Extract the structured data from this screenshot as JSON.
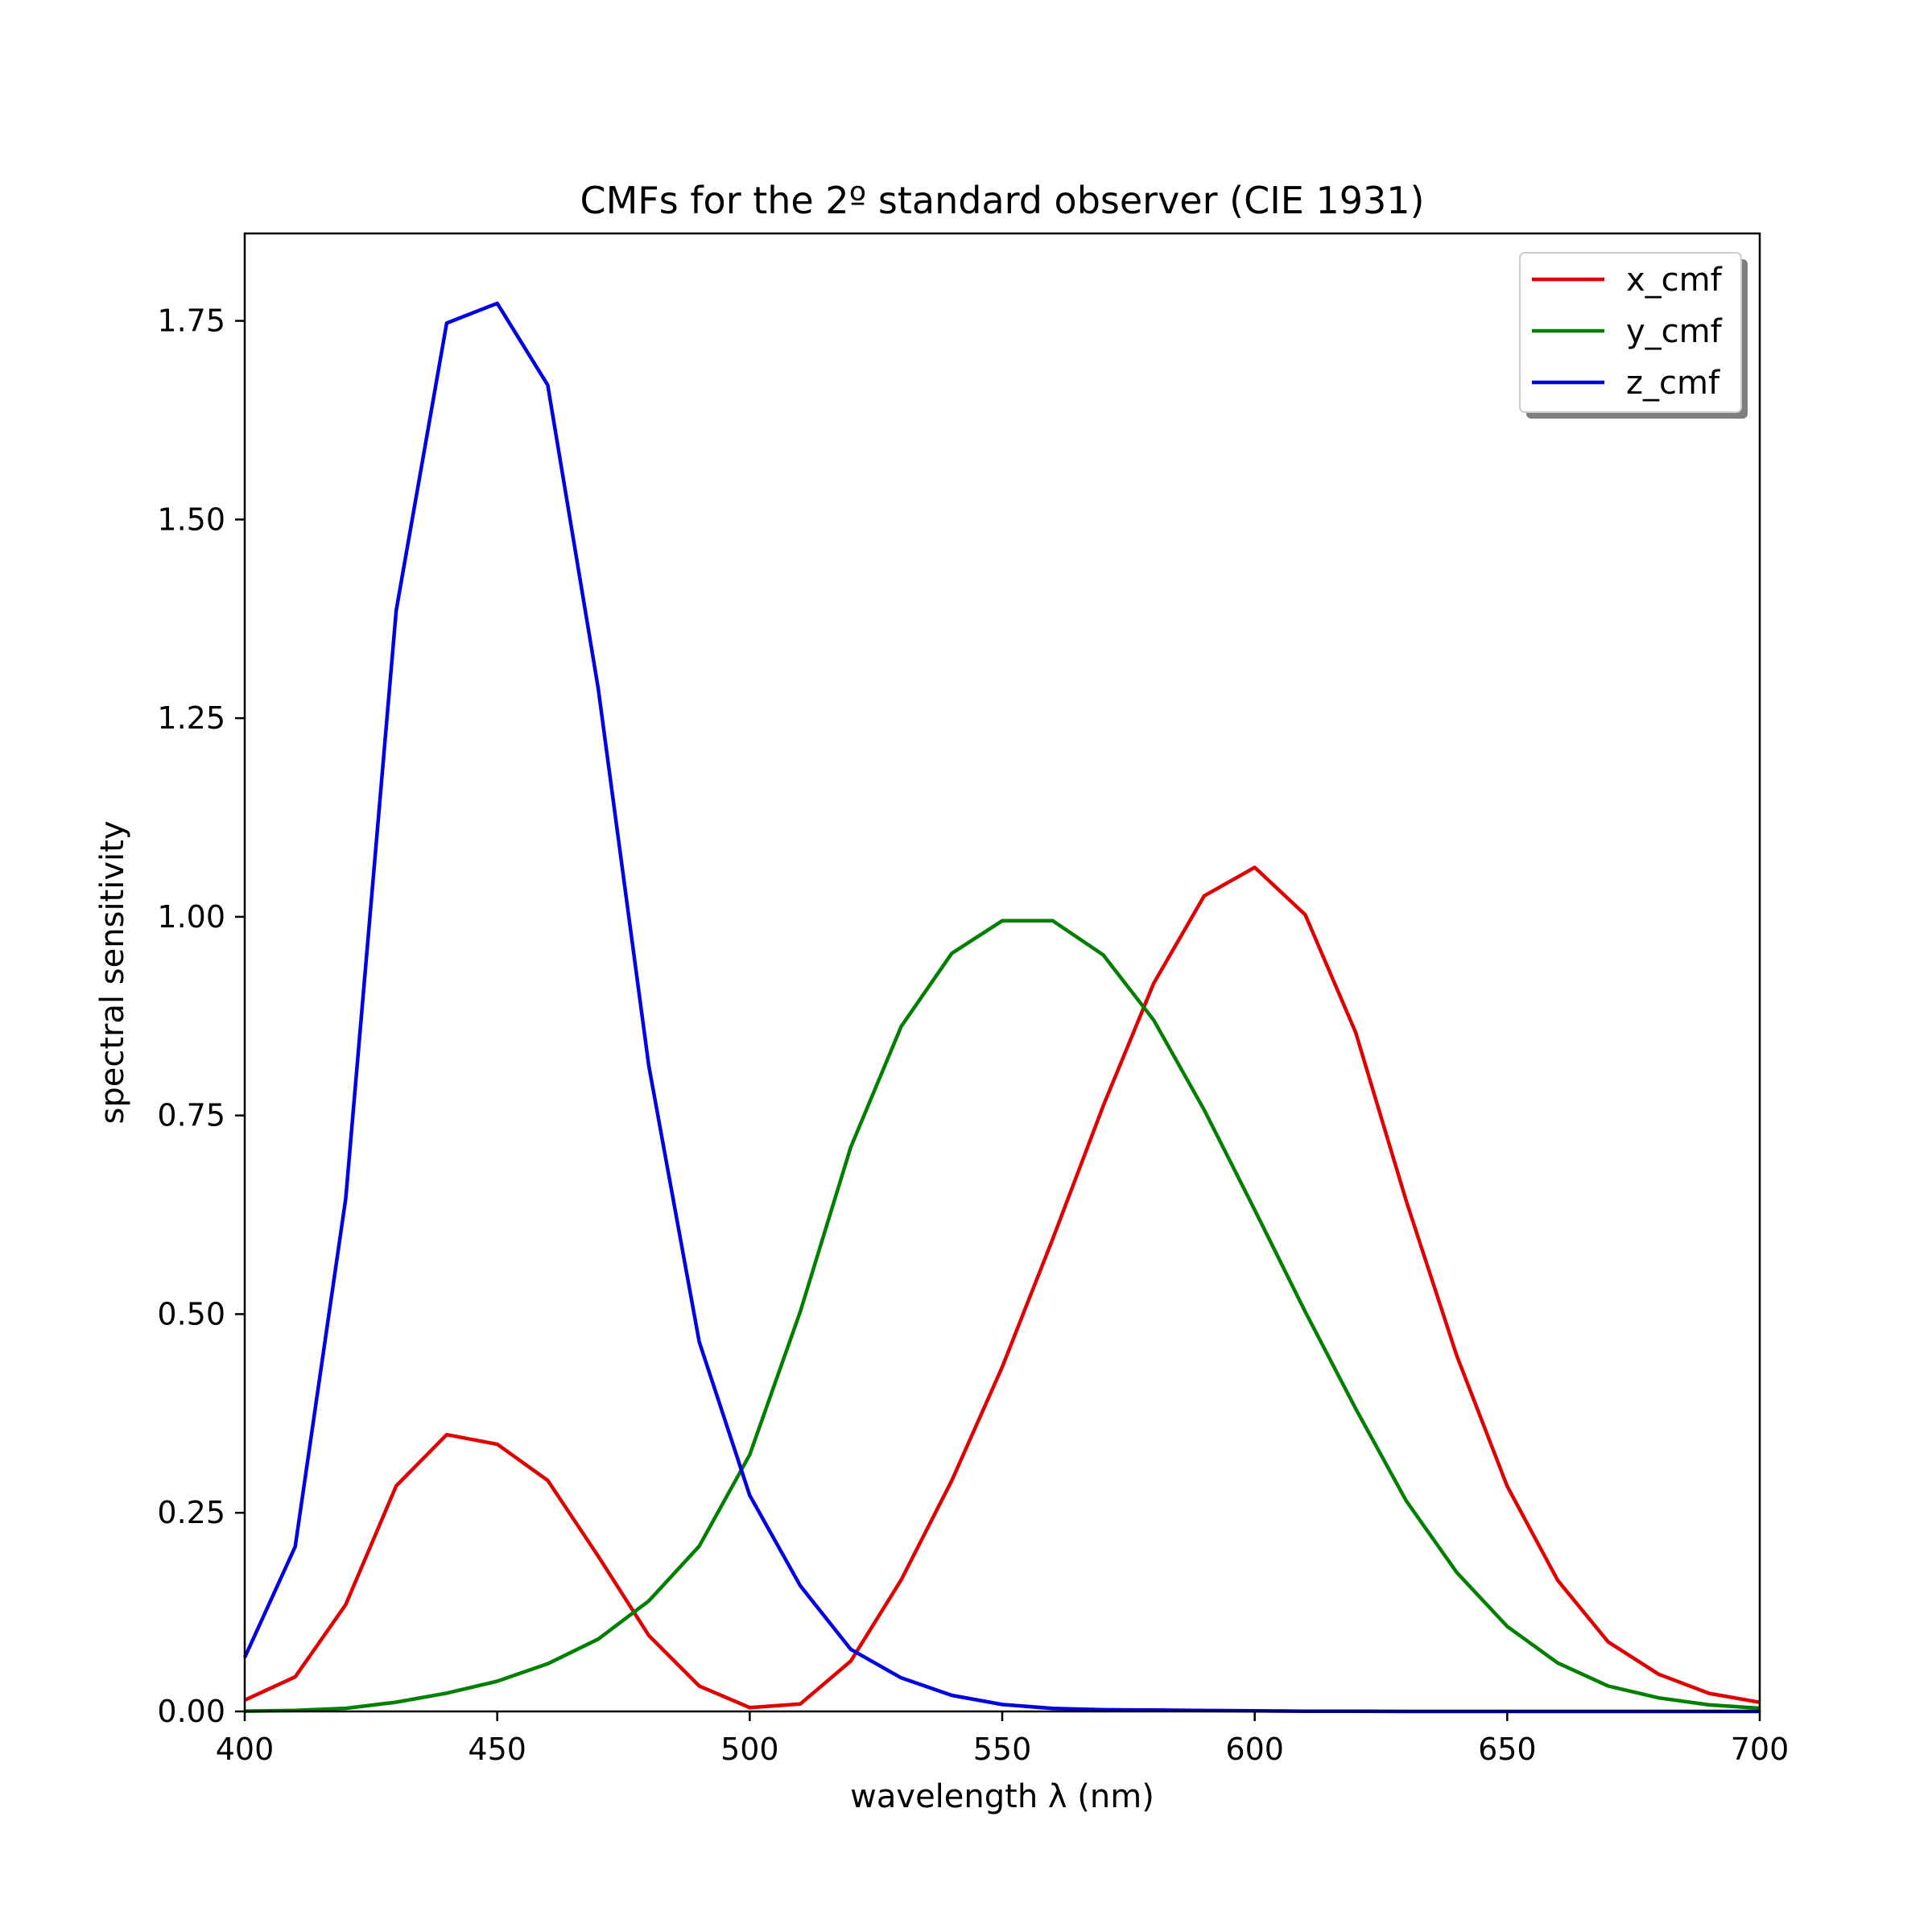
{
  "chart_data": {
    "type": "line",
    "title": "CMFs for the 2º standard observer (CIE 1931)",
    "xlabel": "wavelength λ (nm)",
    "ylabel": "spectral sensitivity",
    "xlim": [
      400,
      700
    ],
    "ylim": [
      0,
      1.86
    ],
    "grid": false,
    "legend_position": "top-right",
    "xticks": [
      400,
      450,
      500,
      550,
      600,
      650,
      700
    ],
    "xtick_labels": [
      "400",
      "450",
      "500",
      "550",
      "600",
      "650",
      "700"
    ],
    "yticks": [
      0,
      0.25,
      0.5,
      0.75,
      1.0,
      1.25,
      1.5,
      1.75
    ],
    "ytick_labels": [
      "0.00",
      "0.25",
      "0.50",
      "0.75",
      "1.00",
      "1.25",
      "1.50",
      "1.75"
    ],
    "x": [
      400,
      410,
      420,
      430,
      440,
      450,
      460,
      470,
      480,
      490,
      500,
      510,
      520,
      530,
      540,
      550,
      560,
      570,
      580,
      590,
      600,
      610,
      620,
      630,
      640,
      650,
      660,
      670,
      680,
      690,
      700
    ],
    "series": [
      {
        "name": "x_cmf",
        "color": "#e00000",
        "values": [
          0.0143,
          0.0435,
          0.1344,
          0.2839,
          0.3483,
          0.3362,
          0.2908,
          0.1954,
          0.0956,
          0.032,
          0.0049,
          0.0093,
          0.0633,
          0.1655,
          0.2904,
          0.4334,
          0.5945,
          0.7621,
          0.9163,
          1.0263,
          1.0622,
          1.0026,
          0.8544,
          0.6424,
          0.4479,
          0.2835,
          0.1649,
          0.0874,
          0.0468,
          0.0227,
          0.0114
        ]
      },
      {
        "name": "y_cmf",
        "color": "#007f00",
        "values": [
          0.0004,
          0.0012,
          0.004,
          0.0116,
          0.023,
          0.038,
          0.06,
          0.091,
          0.139,
          0.208,
          0.323,
          0.503,
          0.71,
          0.862,
          0.954,
          0.995,
          0.995,
          0.952,
          0.87,
          0.757,
          0.631,
          0.503,
          0.381,
          0.265,
          0.175,
          0.107,
          0.061,
          0.032,
          0.017,
          0.0082,
          0.0041
        ]
      },
      {
        "name": "z_cmf",
        "color": "#0000e0",
        "values": [
          0.0679,
          0.2074,
          0.6456,
          1.3856,
          1.7471,
          1.7721,
          1.6692,
          1.2876,
          0.813,
          0.4652,
          0.272,
          0.1582,
          0.0782,
          0.0422,
          0.0203,
          0.0087,
          0.0039,
          0.0021,
          0.0017,
          0.0011,
          0.0008,
          0.0003,
          0.0002,
          0.0,
          0.0,
          0.0,
          0.0,
          0.0,
          0.0,
          0.0,
          0.0
        ]
      }
    ]
  }
}
